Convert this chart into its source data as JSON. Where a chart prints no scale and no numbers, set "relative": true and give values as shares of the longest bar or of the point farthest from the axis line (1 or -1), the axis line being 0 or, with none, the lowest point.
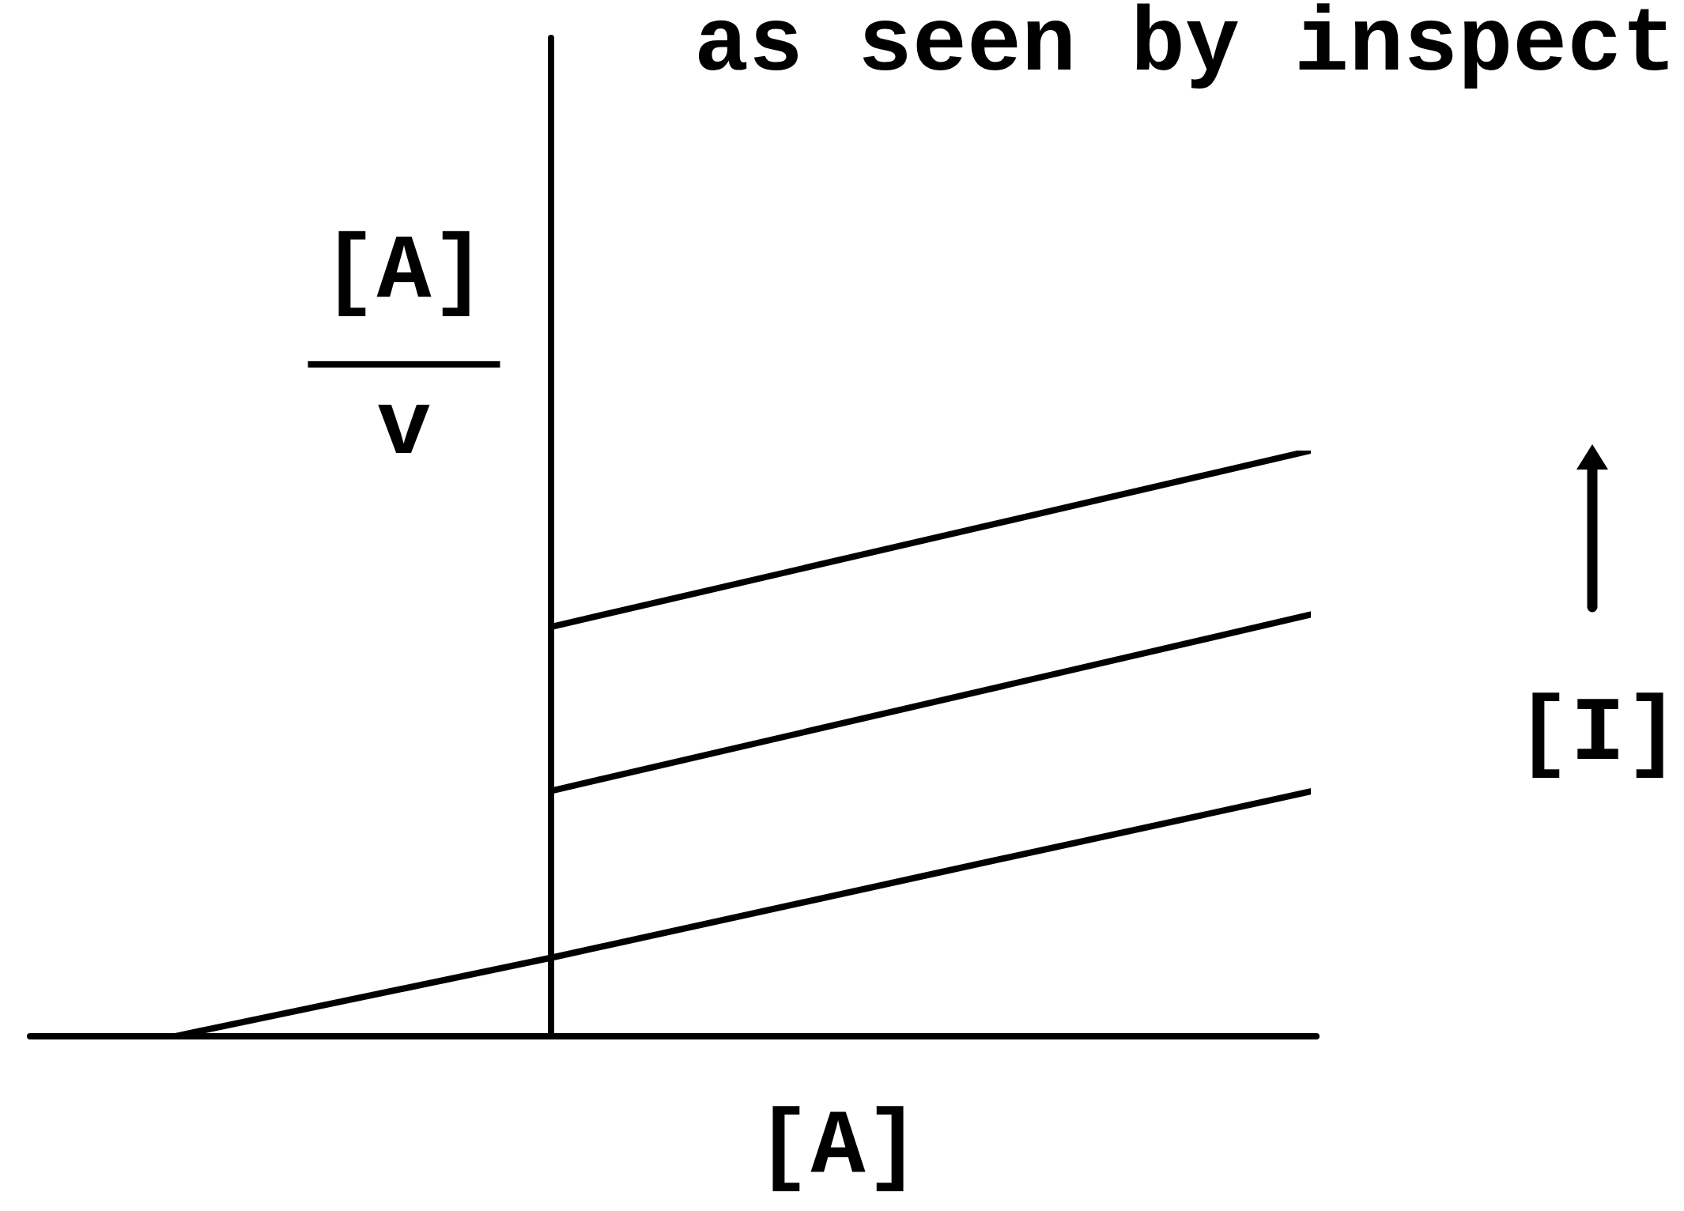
{
  "chart_data": {
    "type": "line",
    "title": "as seen by inspect",
    "xlabel": "[A]",
    "ylabel": "[A]/v",
    "annotations": [
      "[I]"
    ],
    "relative": true,
    "marker": "none",
    "line_style": "solid",
    "categories": [
      null,
      null,
      null,
      null
    ],
    "series": [
      {
        "color": "#000000",
        "values": [
          null,
          0.7,
          0.85,
          1
        ]
      },
      {
        "color": "#000000",
        "values": [
          null,
          0.42,
          0.57,
          0.72
        ]
      },
      {
        "color": "#000000",
        "values": [
          0,
          0.135,
          0.277,
          0.418
        ]
      }
    ]
  }
}
